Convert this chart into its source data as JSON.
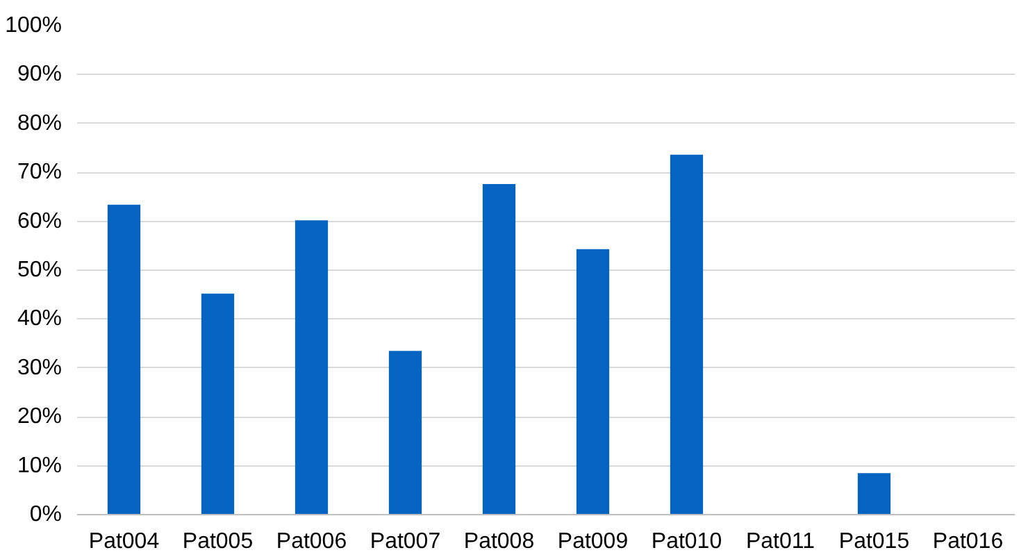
{
  "chart_data": {
    "type": "bar",
    "categories": [
      "Pat004",
      "Pat005",
      "Pat006",
      "Pat007",
      "Pat008",
      "Pat009",
      "Pat010",
      "Pat011",
      "Pat015",
      "Pat016"
    ],
    "values": [
      63.4,
      45.2,
      60.2,
      33.5,
      67.6,
      54.3,
      73.6,
      0,
      8.5,
      0
    ],
    "color": "#0563c1",
    "ylim": [
      0,
      100
    ],
    "yticks": [
      {
        "value": 0,
        "label": "0%"
      },
      {
        "value": 10,
        "label": "10%"
      },
      {
        "value": 20,
        "label": "20%"
      },
      {
        "value": 30,
        "label": "30%"
      },
      {
        "value": 40,
        "label": "40%"
      },
      {
        "value": 50,
        "label": "50%"
      },
      {
        "value": 60,
        "label": "60%"
      },
      {
        "value": 70,
        "label": "70%"
      },
      {
        "value": 80,
        "label": "80%"
      },
      {
        "value": 90,
        "label": "90%"
      },
      {
        "value": 100,
        "label": "100%"
      }
    ],
    "grid": "y"
  }
}
